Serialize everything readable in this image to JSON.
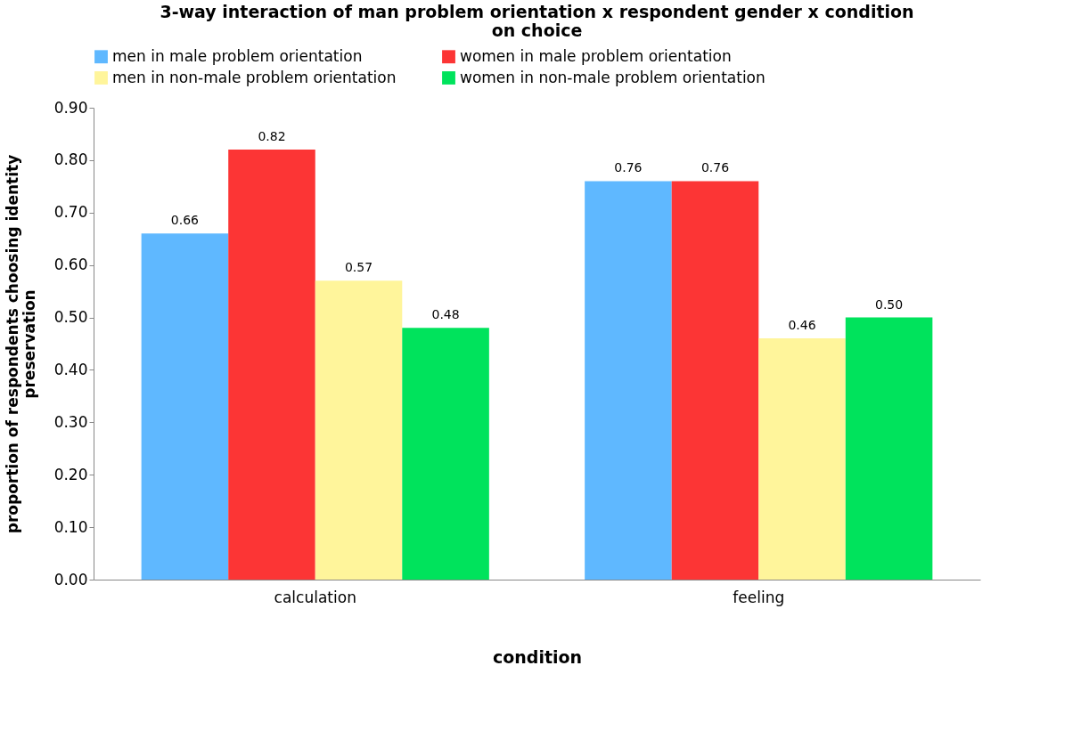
{
  "chart_data": {
    "type": "bar",
    "title": "3-way interaction of man problem orientation x respondent gender x condition\non choice",
    "xlabel": "condition",
    "ylabel": "proportion of respondents choosing identity\npreservation",
    "categories": [
      "calculation",
      "feeling"
    ],
    "series": [
      {
        "name": "men in male problem orientation",
        "color": "#5fb8ff",
        "values": [
          0.66,
          0.76
        ],
        "value_labels": [
          "0.66",
          "0.76"
        ]
      },
      {
        "name": "women in male problem orientation",
        "color": "#fc3535",
        "values": [
          0.82,
          0.76
        ],
        "value_labels": [
          "0.82",
          "0.76"
        ]
      },
      {
        "name": "men in non-male problem orientation",
        "color": "#fff59b",
        "values": [
          0.57,
          0.46
        ],
        "value_labels": [
          "0.57",
          "0.46"
        ]
      },
      {
        "name": "women in non-male problem orientation",
        "color": "#00e35c",
        "values": [
          0.48,
          0.5
        ],
        "value_labels": [
          "0.48",
          "0.50"
        ]
      }
    ],
    "ylim": [
      0,
      0.9
    ],
    "yticks": [
      {
        "value": 0,
        "label": "0.00"
      },
      {
        "value": 0.1,
        "label": "0.10"
      },
      {
        "value": 0.2,
        "label": "0.20"
      },
      {
        "value": 0.3,
        "label": "0.30"
      },
      {
        "value": 0.4,
        "label": "0.40"
      },
      {
        "value": 0.5,
        "label": "0.50"
      },
      {
        "value": 0.6,
        "label": "0.60"
      },
      {
        "value": 0.7,
        "label": "0.70"
      },
      {
        "value": 0.8,
        "label": "0.80"
      },
      {
        "value": 0.9,
        "label": "0.90"
      }
    ],
    "legend": "top",
    "grid": false
  }
}
